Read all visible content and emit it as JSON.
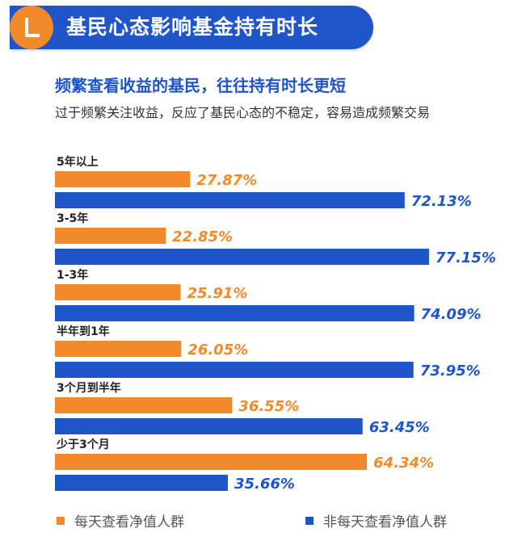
{
  "header": {
    "title": "基民心态影响基金持有时长"
  },
  "headline": "频繁查看收益的基民，往往持有时长更短",
  "subheadline": "过于频繁关注收益，反应了基民心态的不稳定，容易造成频繁交易",
  "colors": {
    "orange": "#f28a2b",
    "blue": "#1f55c9"
  },
  "chart_data": {
    "type": "bar",
    "orientation": "horizontal",
    "categories": [
      "5年以上",
      "3-5年",
      "1-3年",
      "半年到1年",
      "3个月到半年",
      "少于3个月"
    ],
    "series": [
      {
        "name": "每天查看净值人群",
        "color": "#f28a2b",
        "values": [
          27.87,
          22.85,
          25.91,
          26.05,
          36.55,
          64.34
        ],
        "labels": [
          "27.87%",
          "22.85%",
          "25.91%",
          "26.05%",
          "36.55%",
          "64.34%"
        ]
      },
      {
        "name": "非每天查看净值人群",
        "color": "#1f55c9",
        "values": [
          72.13,
          77.15,
          74.09,
          73.95,
          63.45,
          35.66
        ],
        "labels": [
          "72.13%",
          "77.15%",
          "74.09%",
          "73.95%",
          "63.45%",
          "35.66%"
        ]
      }
    ],
    "xlim": [
      0,
      100
    ],
    "grid": false,
    "legend": "bottom"
  }
}
